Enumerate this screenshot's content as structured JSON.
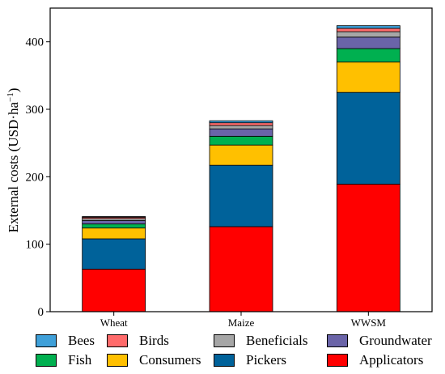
{
  "chart_data": {
    "type": "bar",
    "stacked": true,
    "categories": [
      "Wheat",
      "Maize",
      "WWSM"
    ],
    "ylabel": "External costs (USD·ha",
    "ylabel_sup": "−1",
    "ylabel_close": ")",
    "ylim": [
      0,
      450
    ],
    "yticks": [
      0,
      100,
      200,
      300,
      400
    ],
    "grid": false,
    "legend_position": "bottom",
    "series": [
      {
        "name": "Applicators",
        "color": "#ff0000",
        "values": [
          63,
          126,
          189
        ]
      },
      {
        "name": "Pickers",
        "color": "#00629a",
        "values": [
          45,
          91,
          136
        ]
      },
      {
        "name": "Consumers",
        "color": "#ffc000",
        "values": [
          16,
          30,
          45
        ]
      },
      {
        "name": "Fish",
        "color": "#00b050",
        "values": [
          6,
          13,
          20
        ]
      },
      {
        "name": "Groundwater",
        "color": "#6a64a8",
        "values": [
          5,
          11,
          17
        ]
      },
      {
        "name": "Beneficials",
        "color": "#a6a6a6",
        "values": [
          3,
          5,
          8
        ]
      },
      {
        "name": "Birds",
        "color": "#ff6b6b",
        "values": [
          2,
          4,
          5
        ]
      },
      {
        "name": "Bees",
        "color": "#3fa0d9",
        "values": [
          1,
          3,
          4
        ]
      }
    ]
  },
  "legend": [
    {
      "label": "Bees",
      "color": "#3fa0d9"
    },
    {
      "label": "Birds",
      "color": "#ff6b6b"
    },
    {
      "label": "Beneficials",
      "color": "#a6a6a6"
    },
    {
      "label": "Groundwater",
      "color": "#6a64a8"
    },
    {
      "label": "Fish",
      "color": "#00b050"
    },
    {
      "label": "Consumers",
      "color": "#ffc000"
    },
    {
      "label": "Pickers",
      "color": "#00629a"
    },
    {
      "label": "Applicators",
      "color": "#ff0000"
    }
  ]
}
